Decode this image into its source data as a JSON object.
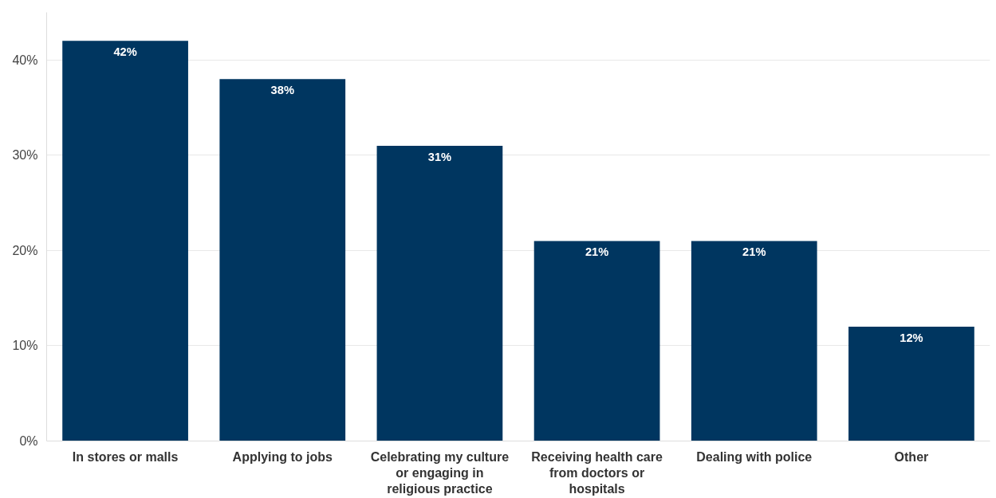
{
  "chart_data": {
    "type": "bar",
    "categories": [
      "In stores or malls",
      "Applying to jobs",
      "Celebrating my culture or engaging in religious practice",
      "Receiving health care from doctors or hospitals",
      "Dealing with police",
      "Other"
    ],
    "values": [
      42,
      38,
      31,
      21,
      21,
      12
    ],
    "color": "#003660",
    "value_labels": [
      "42%",
      "38%",
      "31%",
      "21%",
      "21%",
      "12%"
    ],
    "ylim": [
      0,
      45
    ],
    "yticks": [
      {
        "value": 0,
        "label": "0%"
      },
      {
        "value": 10,
        "label": "10%"
      },
      {
        "value": 20,
        "label": "20%"
      },
      {
        "value": 30,
        "label": "30%"
      },
      {
        "value": 40,
        "label": "40%"
      }
    ],
    "grid": "y"
  }
}
